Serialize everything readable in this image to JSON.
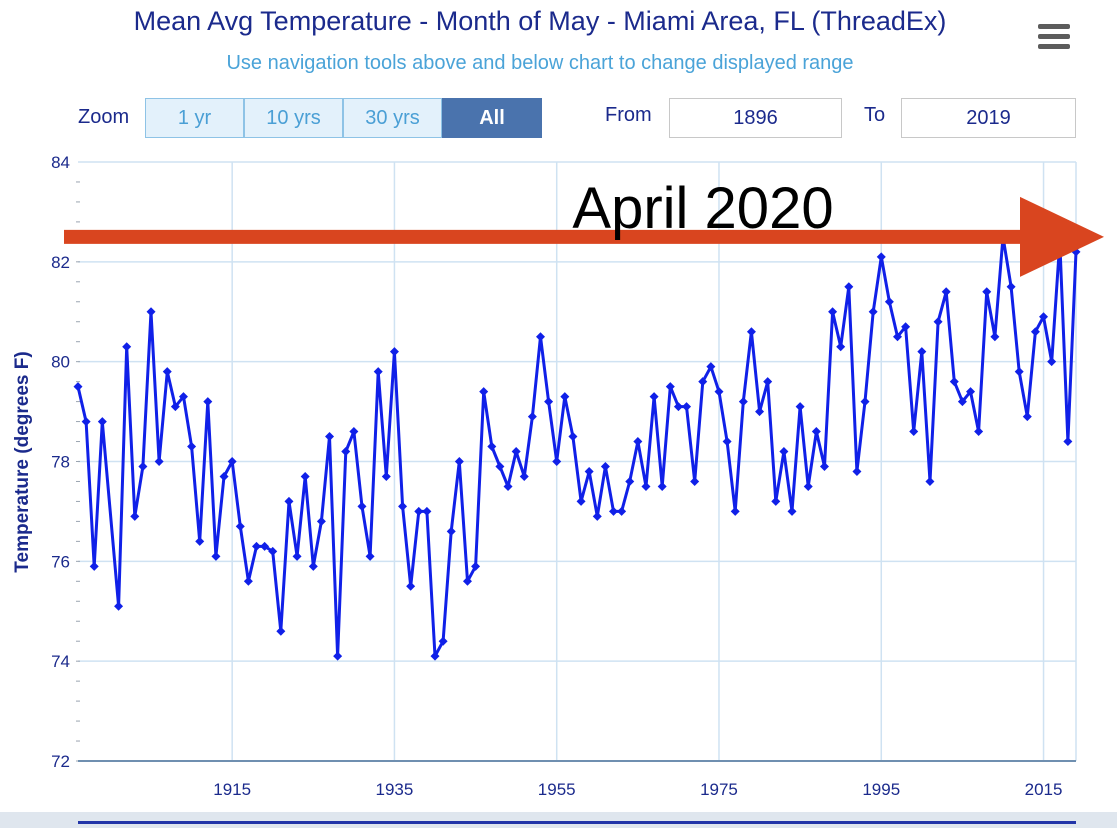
{
  "header": {
    "title": "Mean Avg Temperature  - Month of May - Miami Area, FL (ThreadEx)",
    "subtitle": "Use navigation tools above and below chart to change displayed range",
    "menu_icon": "hamburger-menu-icon"
  },
  "controls": {
    "zoom_label": "Zoom",
    "zoom_buttons": [
      {
        "label": "1 yr",
        "active": false
      },
      {
        "label": "10 yrs",
        "active": false
      },
      {
        "label": "30 yrs",
        "active": false
      },
      {
        "label": "All",
        "active": true
      }
    ],
    "from_label": "From",
    "from_value": "1896",
    "to_label": "To",
    "to_value": "2019"
  },
  "annotation": {
    "text": "April 2020",
    "arrow_color": "#d9451f",
    "y_value": 82.5
  },
  "colors": {
    "line": "#1020e8",
    "grid": "#cfe2f2",
    "axis_text": "#1b2a8c"
  },
  "chart_data": {
    "type": "line",
    "title": "Mean Avg Temperature  - Month of May - Miami Area, FL (ThreadEx)",
    "xlabel": "",
    "ylabel": "Temperature (degrees F)",
    "xlim": [
      1896,
      2019
    ],
    "ylim": [
      72,
      84
    ],
    "x_ticks": [
      1915,
      1935,
      1955,
      1975,
      1995,
      2015
    ],
    "y_ticks": [
      72,
      74,
      76,
      78,
      80,
      82,
      84
    ],
    "grid": true,
    "series": [
      {
        "name": "Mean Avg Temperature",
        "x": [
          1896,
          1897,
          1898,
          1899,
          1901,
          1902,
          1903,
          1904,
          1905,
          1906,
          1907,
          1908,
          1909,
          1910,
          1911,
          1912,
          1913,
          1914,
          1915,
          1916,
          1917,
          1918,
          1919,
          1920,
          1921,
          1922,
          1923,
          1924,
          1925,
          1926,
          1927,
          1928,
          1929,
          1930,
          1931,
          1932,
          1933,
          1934,
          1935,
          1936,
          1937,
          1938,
          1939,
          1940,
          1941,
          1942,
          1943,
          1944,
          1945,
          1946,
          1947,
          1948,
          1949,
          1950,
          1951,
          1952,
          1953,
          1954,
          1955,
          1956,
          1957,
          1958,
          1959,
          1960,
          1961,
          1962,
          1963,
          1964,
          1965,
          1966,
          1967,
          1968,
          1969,
          1970,
          1971,
          1972,
          1973,
          1974,
          1975,
          1976,
          1977,
          1978,
          1979,
          1980,
          1981,
          1982,
          1983,
          1984,
          1985,
          1986,
          1987,
          1988,
          1989,
          1990,
          1991,
          1992,
          1993,
          1994,
          1995,
          1996,
          1997,
          1998,
          1999,
          2000,
          2001,
          2002,
          2003,
          2004,
          2005,
          2006,
          2007,
          2008,
          2009,
          2010,
          2011,
          2012,
          2013,
          2014,
          2015,
          2016,
          2017,
          2018,
          2019
        ],
        "values": [
          79.5,
          78.8,
          75.9,
          78.8,
          75.1,
          80.3,
          76.9,
          77.9,
          81.0,
          78.0,
          79.8,
          79.1,
          79.3,
          78.3,
          76.4,
          79.2,
          76.1,
          77.7,
          78.0,
          76.7,
          75.6,
          76.3,
          76.3,
          76.2,
          74.6,
          77.2,
          76.1,
          77.7,
          75.9,
          76.8,
          78.5,
          74.1,
          78.2,
          78.6,
          77.1,
          76.1,
          79.8,
          77.7,
          80.2,
          77.1,
          75.5,
          77.0,
          77.0,
          74.1,
          74.4,
          76.6,
          78.0,
          75.6,
          75.9,
          79.4,
          78.3,
          77.9,
          77.5,
          78.2,
          77.7,
          78.9,
          80.5,
          79.2,
          78.0,
          79.3,
          78.5,
          77.2,
          77.8,
          76.9,
          77.9,
          77.0,
          77.0,
          77.6,
          78.4,
          77.5,
          79.3,
          77.5,
          79.5,
          79.1,
          79.1,
          77.6,
          79.6,
          79.9,
          79.4,
          78.4,
          77.0,
          79.2,
          80.6,
          79.0,
          79.6,
          77.2,
          78.2,
          77.0,
          79.1,
          77.5,
          78.6,
          77.9,
          81.0,
          80.3,
          81.5,
          77.8,
          79.2,
          81.0,
          82.1,
          81.2,
          80.5,
          80.7,
          78.6,
          80.2,
          77.6,
          80.8,
          81.4,
          79.6,
          79.2,
          79.4,
          78.6,
          81.4,
          80.5,
          82.5,
          81.5,
          79.8,
          78.9,
          80.6,
          80.9,
          80.0,
          82.4,
          78.4,
          82.2
        ]
      }
    ]
  }
}
